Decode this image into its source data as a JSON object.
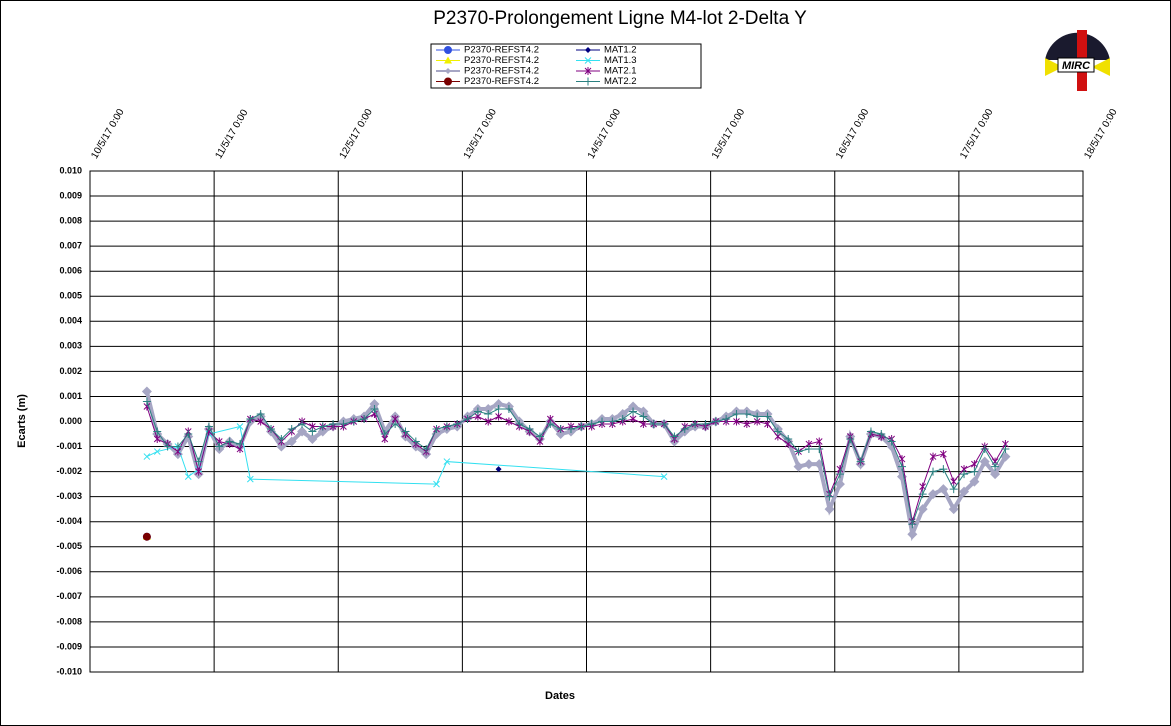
{
  "chart_data": {
    "type": "line",
    "title": "P2370-Prolongement  Ligne  M4-lot 2-Delta Y",
    "x_label": "Dates",
    "y_label": "Ecarts (m)",
    "logo_text": "MIRC",
    "xlim": [
      "2017-05-10 00:00",
      "2017-05-18 00:00"
    ],
    "xticks": [
      {
        "value": "2017-05-10 00:00",
        "label": "10/5/17 0:00"
      },
      {
        "value": "2017-05-11 00:00",
        "label": "11/5/17 0:00"
      },
      {
        "value": "2017-05-12 00:00",
        "label": "12/5/17 0:00"
      },
      {
        "value": "2017-05-13 00:00",
        "label": "13/5/17 0:00"
      },
      {
        "value": "2017-05-14 00:00",
        "label": "14/5/17 0:00"
      },
      {
        "value": "2017-05-15 00:00",
        "label": "15/5/17 0:00"
      },
      {
        "value": "2017-05-16 00:00",
        "label": "16/5/17 0:00"
      },
      {
        "value": "2017-05-17 00:00",
        "label": "17/5/17 0:00"
      },
      {
        "value": "2017-05-18 00:00",
        "label": "18/5/17 0:00"
      }
    ],
    "ylim": [
      -0.01,
      0.01
    ],
    "yticks": [
      {
        "value": 0.01,
        "label": "0.010"
      },
      {
        "value": 0.009,
        "label": "0.009"
      },
      {
        "value": 0.008,
        "label": "0.008"
      },
      {
        "value": 0.007,
        "label": "0.007"
      },
      {
        "value": 0.006,
        "label": "0.006"
      },
      {
        "value": 0.005,
        "label": "0.005"
      },
      {
        "value": 0.004,
        "label": "0.004"
      },
      {
        "value": 0.003,
        "label": "0.003"
      },
      {
        "value": 0.002,
        "label": "0.002"
      },
      {
        "value": 0.001,
        "label": "0.001"
      },
      {
        "value": 0,
        "label": "0.000"
      },
      {
        "value": -0.001,
        "label": "-0.001"
      },
      {
        "value": -0.002,
        "label": "-0.002"
      },
      {
        "value": -0.003,
        "label": "-0.003"
      },
      {
        "value": -0.004,
        "label": "-0.004"
      },
      {
        "value": -0.005,
        "label": "-0.005"
      },
      {
        "value": -0.006,
        "label": "-0.006"
      },
      {
        "value": -0.007,
        "label": "-0.007"
      },
      {
        "value": -0.008,
        "label": "-0.008"
      },
      {
        "value": -0.009,
        "label": "-0.009"
      },
      {
        "value": -0.01,
        "label": "-0.010"
      }
    ],
    "grid": true,
    "x": [
      "2017-05-10 11:00",
      "2017-05-10 13:00",
      "2017-05-10 15:00",
      "2017-05-10 17:00",
      "2017-05-10 19:00",
      "2017-05-10 21:00",
      "2017-05-10 23:00",
      "2017-05-11 01:00",
      "2017-05-11 03:00",
      "2017-05-11 05:00",
      "2017-05-11 07:00",
      "2017-05-11 09:00",
      "2017-05-11 11:00",
      "2017-05-11 13:00",
      "2017-05-11 15:00",
      "2017-05-11 17:00",
      "2017-05-11 19:00",
      "2017-05-11 21:00",
      "2017-05-11 23:00",
      "2017-05-12 01:00",
      "2017-05-12 03:00",
      "2017-05-12 05:00",
      "2017-05-12 07:00",
      "2017-05-12 09:00",
      "2017-05-12 11:00",
      "2017-05-12 13:00",
      "2017-05-12 15:00",
      "2017-05-12 17:00",
      "2017-05-12 19:00",
      "2017-05-12 21:00",
      "2017-05-12 23:00",
      "2017-05-13 01:00",
      "2017-05-13 03:00",
      "2017-05-13 05:00",
      "2017-05-13 07:00",
      "2017-05-13 09:00",
      "2017-05-13 11:00",
      "2017-05-13 13:00",
      "2017-05-13 15:00",
      "2017-05-13 17:00",
      "2017-05-13 19:00",
      "2017-05-13 21:00",
      "2017-05-13 23:00",
      "2017-05-14 01:00",
      "2017-05-14 03:00",
      "2017-05-14 05:00",
      "2017-05-14 07:00",
      "2017-05-14 09:00",
      "2017-05-14 11:00",
      "2017-05-14 13:00",
      "2017-05-14 15:00",
      "2017-05-14 17:00",
      "2017-05-14 19:00",
      "2017-05-14 21:00",
      "2017-05-14 23:00",
      "2017-05-15 01:00",
      "2017-05-15 03:00",
      "2017-05-15 05:00",
      "2017-05-15 07:00",
      "2017-05-15 09:00",
      "2017-05-15 11:00",
      "2017-05-15 13:00",
      "2017-05-15 15:00",
      "2017-05-15 17:00",
      "2017-05-15 19:00",
      "2017-05-15 21:00",
      "2017-05-15 23:00",
      "2017-05-16 01:00",
      "2017-05-16 03:00",
      "2017-05-16 05:00",
      "2017-05-16 07:00",
      "2017-05-16 09:00",
      "2017-05-16 11:00",
      "2017-05-16 13:00",
      "2017-05-16 15:00",
      "2017-05-16 17:00",
      "2017-05-16 19:00",
      "2017-05-16 21:00",
      "2017-05-16 23:00",
      "2017-05-17 01:00",
      "2017-05-17 03:00",
      "2017-05-17 05:00",
      "2017-05-17 07:00",
      "2017-05-17 09:00"
    ],
    "series": [
      {
        "name": "P2370-REFST4.2",
        "color": "#3050e0",
        "marker": "circle",
        "x": [
          "2017-05-10 11:00"
        ],
        "values": [
          -0.0046
        ]
      },
      {
        "name": "P2370-REFST4.2",
        "color": "#f0f000",
        "marker": "triangle",
        "x": [
          "2017-05-10 11:00"
        ],
        "values": [
          -0.0046
        ]
      },
      {
        "name": "P2370-REFST4.2",
        "color": "#a6a6c4",
        "marker": "diamond",
        "line_width": 4,
        "values": [
          0.0012,
          -0.0005,
          -0.0009,
          -0.0013,
          -0.0006,
          -0.0021,
          -0.0003,
          -0.0011,
          -0.0008,
          -0.001,
          0,
          0.0002,
          -0.0004,
          -0.001,
          -0.0008,
          -0.0004,
          -0.0007,
          -0.0004,
          -0.0002,
          0,
          0.0001,
          0.0002,
          0.0007,
          -0.0004,
          0.0002,
          -0.0006,
          -0.001,
          -0.0013,
          -0.0005,
          -0.0003,
          -0.0002,
          0.0002,
          0.0005,
          0.0005,
          0.0007,
          0.0006,
          0,
          -0.0004,
          -0.0007,
          0,
          -0.0005,
          -0.0004,
          -0.0002,
          -0.0001,
          0.0001,
          0.0001,
          0.0003,
          0.0006,
          0.0004,
          -0.0001,
          -0.0001,
          -0.0008,
          -0.0004,
          -0.0002,
          -0.0002,
          0,
          0.0002,
          0.0004,
          0.0004,
          0.0003,
          0.0003,
          -0.0003,
          -0.0008,
          -0.0018,
          -0.0017,
          -0.0017,
          -0.0035,
          -0.0025,
          -0.0006,
          -0.0017,
          -0.0005,
          -0.0006,
          -0.001,
          -0.0022,
          -0.0045,
          -0.0035,
          -0.0029,
          -0.0027,
          -0.0035,
          -0.0028,
          -0.0024,
          -0.0016,
          -0.0021,
          -0.0014
        ]
      },
      {
        "name": "P2370-REFST4.2",
        "color": "#7a0000",
        "marker": "circle",
        "x": [
          "2017-05-10 11:00"
        ],
        "values": [
          -0.0046
        ]
      },
      {
        "name": "MAT1.2",
        "color": "#000080",
        "marker": "diamond",
        "x": [
          "2017-05-13 07:00"
        ],
        "values": [
          -0.0019
        ]
      },
      {
        "name": "MAT1.3",
        "color": "#33e0f0",
        "marker": "x",
        "x": [
          "2017-05-10 11:00",
          "2017-05-10 13:00",
          "2017-05-10 17:00",
          "2017-05-10 19:00",
          "2017-05-10 21:00",
          "2017-05-10 23:00",
          "2017-05-11 05:00",
          "2017-05-11 07:00",
          "2017-05-12 19:00",
          "2017-05-12 21:00",
          "2017-05-14 15:00"
        ],
        "values": [
          -0.0014,
          -0.0012,
          -0.001,
          -0.0022,
          -0.0019,
          -0.0005,
          -0.0002,
          -0.0023,
          -0.0025,
          -0.0016,
          -0.0022
        ]
      },
      {
        "name": "MAT2.1",
        "color": "#800080",
        "marker": "star",
        "values": [
          0.0006,
          -0.0007,
          -0.0009,
          -0.0012,
          -0.0004,
          -0.002,
          -0.0004,
          -0.0008,
          -0.0009,
          -0.0011,
          0.0001,
          0,
          -0.0003,
          -0.0008,
          -0.0004,
          0,
          -0.0002,
          -0.0002,
          -0.0002,
          -0.0002,
          0,
          0.0001,
          0.0003,
          -0.0007,
          0.0001,
          -0.0005,
          -0.0009,
          -0.0012,
          -0.0003,
          -0.0002,
          -0.0001,
          0.0001,
          0.0002,
          0,
          0.0002,
          0,
          -0.0002,
          -0.0004,
          -0.0008,
          0.0001,
          -0.0003,
          -0.0002,
          -0.0002,
          -0.0002,
          -0.0001,
          -0.0001,
          0,
          0.0001,
          -0.0001,
          -0.0001,
          -0.0001,
          -0.0007,
          -0.0002,
          -0.0001,
          -0.0002,
          0,
          0,
          0,
          -0.0001,
          0,
          -0.0001,
          -0.0006,
          -0.0009,
          -0.0012,
          -0.0009,
          -0.0008,
          -0.0029,
          -0.0019,
          -0.0006,
          -0.0016,
          -0.0005,
          -0.0006,
          -0.0007,
          -0.0015,
          -0.004,
          -0.0026,
          -0.0014,
          -0.0013,
          -0.0024,
          -0.0019,
          -0.0017,
          -0.001,
          -0.0016,
          -0.0009
        ]
      },
      {
        "name": "MAT2.2",
        "color": "#2a8080",
        "marker": "plus",
        "values": [
          0.0008,
          -0.0004,
          -0.001,
          -0.001,
          -0.0005,
          -0.0016,
          -0.0002,
          -0.001,
          -0.0008,
          -0.0009,
          0.0001,
          0.0003,
          -0.0003,
          -0.0007,
          -0.0003,
          -0.0001,
          -0.0004,
          -0.0002,
          -0.0001,
          -0.0001,
          0,
          0.0001,
          0.0005,
          -0.0005,
          -0.0001,
          -0.0004,
          -0.0008,
          -0.0011,
          -0.0003,
          -0.0002,
          -0.0001,
          0.0001,
          0.0004,
          0.0003,
          0.0005,
          0.0005,
          -0.0001,
          -0.0003,
          -0.0006,
          -0.0001,
          -0.0003,
          -0.0003,
          -0.0002,
          -0.0001,
          0,
          0,
          0.0001,
          0.0004,
          0.0002,
          -0.0001,
          -0.0001,
          -0.0006,
          -0.0003,
          -0.0001,
          -0.0001,
          0,
          0.0001,
          0.0003,
          0.0003,
          0.0002,
          0.0002,
          -0.0004,
          -0.0007,
          -0.0012,
          -0.0011,
          -0.0011,
          -0.003,
          -0.0021,
          -0.0007,
          -0.0016,
          -0.0004,
          -0.0005,
          -0.0008,
          -0.0018,
          -0.0041,
          -0.0029,
          -0.002,
          -0.0019,
          -0.0027,
          -0.0021,
          -0.002,
          -0.0011,
          -0.0018,
          -0.0011
        ]
      }
    ]
  }
}
